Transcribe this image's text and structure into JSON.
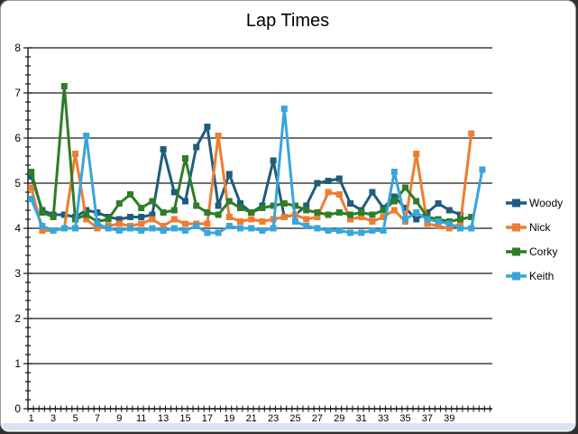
{
  "chart_data": {
    "type": "line",
    "title": "Lap Times",
    "xlabel": "",
    "ylabel": "",
    "ylim": [
      0,
      8
    ],
    "y_tick_labels": [
      "0",
      "1",
      "2",
      "3",
      "4",
      "5",
      "6",
      "7",
      "8"
    ],
    "x_tick_labels": [
      "1",
      "3",
      "5",
      "7",
      "9",
      "11",
      "13",
      "15",
      "17",
      "19",
      "21",
      "23",
      "25",
      "27",
      "29",
      "31",
      "33",
      "35",
      "37",
      "39"
    ],
    "x_label_categories": [
      1,
      3,
      5,
      7,
      9,
      11,
      13,
      15,
      17,
      19,
      21,
      23,
      25,
      27,
      29,
      31,
      33,
      35,
      37,
      39
    ],
    "num_categories": 42,
    "grid": "horizontal-major",
    "legend_position": "right",
    "colors": {
      "woody": "#1F5C7D",
      "nick": "#ED7D31",
      "corky": "#2F7D27",
      "keith": "#38A5DC",
      "gridline": "#1a1a1a",
      "axis": "#1a1a1a",
      "text": "#000000"
    },
    "series": [
      {
        "name": "Woody",
        "color_key": "woody",
        "values": [
          5.15,
          4.4,
          4.3,
          4.3,
          4.25,
          4.4,
          4.35,
          4.25,
          4.2,
          4.25,
          4.25,
          4.3,
          5.75,
          4.8,
          4.6,
          5.8,
          6.25,
          4.5,
          5.2,
          4.55,
          4.35,
          4.5,
          5.5,
          4.25,
          4.3,
          4.5,
          5.0,
          5.05,
          5.1,
          4.55,
          4.4,
          4.8,
          4.45,
          4.7,
          4.45,
          4.2,
          4.35,
          4.55,
          4.4,
          4.3,
          null,
          null
        ]
      },
      {
        "name": "Nick",
        "color_key": "nick",
        "values": [
          4.9,
          3.95,
          3.95,
          4.0,
          5.65,
          4.2,
          4.0,
          4.05,
          4.1,
          4.05,
          4.1,
          4.2,
          4.05,
          4.2,
          4.1,
          4.1,
          4.1,
          6.05,
          4.25,
          4.15,
          4.2,
          4.15,
          4.2,
          4.25,
          4.3,
          4.2,
          4.25,
          4.8,
          4.75,
          4.2,
          4.25,
          4.15,
          4.25,
          4.4,
          4.15,
          5.65,
          4.1,
          4.05,
          4.0,
          4.1,
          6.1,
          null
        ]
      },
      {
        "name": "Corky",
        "color_key": "corky",
        "values": [
          5.25,
          4.35,
          4.25,
          7.15,
          4.2,
          4.3,
          4.15,
          4.2,
          4.55,
          4.75,
          4.45,
          4.6,
          4.35,
          4.4,
          5.55,
          4.5,
          4.35,
          4.3,
          4.6,
          4.45,
          4.35,
          4.45,
          4.5,
          4.55,
          4.5,
          4.4,
          4.35,
          4.3,
          4.35,
          4.3,
          4.35,
          4.3,
          4.4,
          4.6,
          4.9,
          4.6,
          4.25,
          4.2,
          4.15,
          4.2,
          4.25,
          null
        ]
      },
      {
        "name": "Keith",
        "color_key": "keith",
        "values": [
          4.65,
          4.05,
          3.95,
          4.0,
          4.0,
          6.05,
          4.1,
          4.0,
          3.95,
          4.0,
          3.95,
          4.0,
          3.95,
          4.0,
          3.95,
          4.05,
          3.9,
          3.9,
          4.05,
          4.0,
          4.0,
          3.95,
          4.0,
          6.65,
          4.15,
          4.05,
          4.0,
          3.95,
          3.95,
          3.9,
          3.9,
          3.95,
          3.95,
          5.25,
          4.2,
          4.35,
          4.2,
          4.15,
          4.1,
          4.0,
          4.0,
          5.3
        ]
      }
    ]
  }
}
